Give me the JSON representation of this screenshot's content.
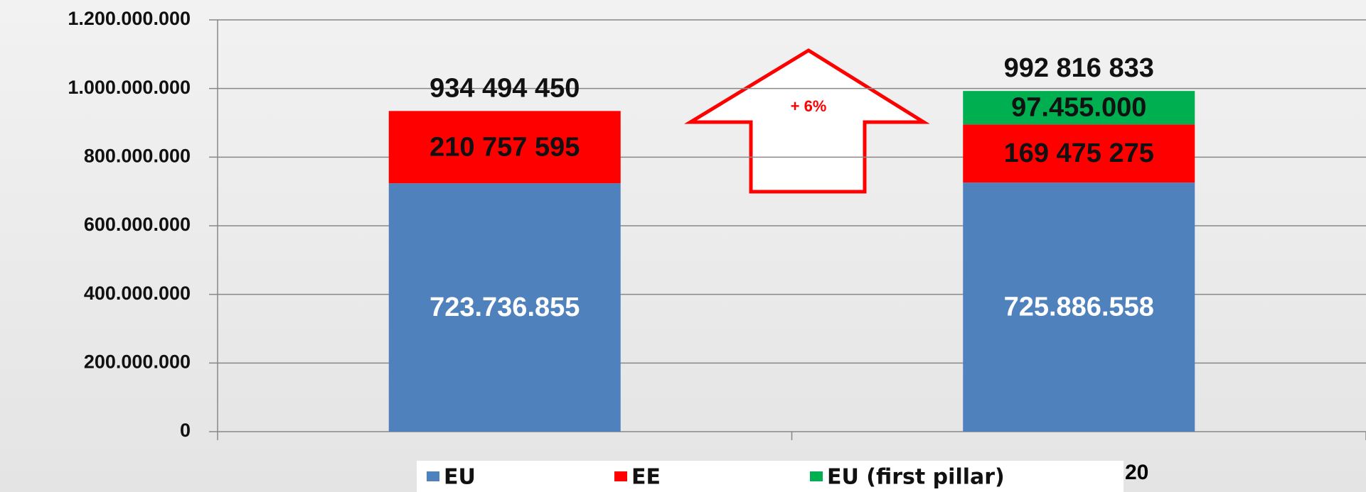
{
  "chart_data": {
    "type": "stacked_bar",
    "categories": [
      null,
      null
    ],
    "series": [
      {
        "name": "EU",
        "color": "#4f81bd",
        "values": [
          723736855,
          725886558
        ],
        "value_labels": [
          "723.736.855",
          "725.886.558"
        ]
      },
      {
        "name": "EE",
        "color": "#ff0000",
        "values": [
          210757595,
          169475275
        ],
        "value_labels": [
          "210 757 595",
          "169 475 275"
        ]
      },
      {
        "name": "EU (first pillar)",
        "color": "#00b050",
        "values": [
          null,
          97455000
        ],
        "value_labels": [
          null,
          "97.455.000"
        ]
      }
    ],
    "totals": [
      934494450,
      992816833
    ],
    "total_labels": [
      "934 494 450",
      "992 816 833"
    ],
    "annotation": "+ 6%",
    "page_number": "20",
    "ylim": [
      0,
      1200000000
    ],
    "yticks": [
      0,
      {
        "value": 200000000,
        "label": "200.000.000"
      },
      {
        "value": 400000000,
        "label": "400.000.000"
      },
      {
        "value": 600000000,
        "label": "600.000.000"
      },
      {
        "value": 800000000,
        "label": "800.000.000"
      },
      {
        "value": 1000000000,
        "label": "1.000.000.000"
      },
      {
        "value": 1200000000,
        "label": "1.200.000.000"
      }
    ],
    "grid": true,
    "legend": "bottom"
  }
}
